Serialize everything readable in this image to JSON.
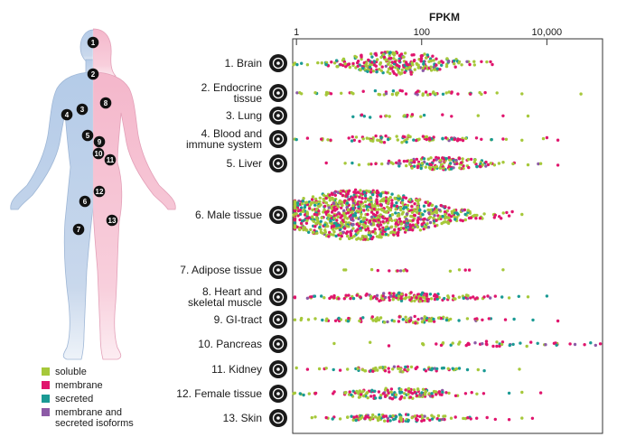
{
  "chart_data": {
    "type": "scatter",
    "subtype": "beeswarm",
    "title": "",
    "xlabel": "FPKM",
    "ylabel": "",
    "x_scale": "log",
    "xlim": [
      0.9,
      75000
    ],
    "x_ticks": [
      {
        "value": 1,
        "label": "1"
      },
      {
        "value": 100,
        "label": "100"
      },
      {
        "value": 10000,
        "label": "10,000"
      }
    ],
    "grid": false,
    "legend_position": "bottom-left",
    "categories_colors": {
      "soluble": "#a6c83a",
      "membrane": "#e0156d",
      "secreted": "#1a9a94",
      "membrane and secreted isoforms": "#8c5aa6"
    },
    "legend": [
      {
        "key": "soluble",
        "label": "soluble"
      },
      {
        "key": "membrane",
        "label": "membrane"
      },
      {
        "key": "secreted",
        "label": "secreted"
      },
      {
        "key": "membrane and secreted isoforms",
        "label": "membrane and secreted isoforms"
      }
    ],
    "tissues": [
      {
        "number": 1,
        "label": [
          "1. Brain"
        ],
        "icon": "brain-icon",
        "density": {
          "median": 40,
          "spread": 1.0,
          "count": 280,
          "height": 26
        },
        "outliers": [
          0.9,
          1.2,
          1.5,
          3,
          6,
          400,
          700,
          900,
          1100
        ]
      },
      {
        "number": 2,
        "label": [
          "2. Endocrine",
          "tissue"
        ],
        "icon": "thyroid-icon",
        "density": {
          "median": 40,
          "spread": 1.1,
          "count": 55,
          "height": 6
        },
        "outliers": [
          1.2,
          2,
          3,
          600,
          900,
          1600,
          4000,
          35000
        ]
      },
      {
        "number": 3,
        "label": [
          "3. Lung"
        ],
        "icon": "lungs-icon",
        "density": {
          "median": 60,
          "spread": 1.2,
          "count": 18,
          "height": 3
        },
        "outliers": [
          8,
          15,
          300,
          800,
          2000,
          5000
        ]
      },
      {
        "number": 4,
        "label": [
          "4. Blood and",
          "immune system"
        ],
        "icon": "blood-cell-icon",
        "density": {
          "median": 40,
          "spread": 1.3,
          "count": 90,
          "height": 8
        },
        "outliers": [
          1,
          1.5,
          2.5,
          2000,
          4000,
          10000,
          15000
        ]
      },
      {
        "number": 5,
        "label": [
          "5. Liver"
        ],
        "icon": "liver-icon",
        "density": {
          "median": 200,
          "spread": 0.9,
          "count": 160,
          "height": 14
        },
        "outliers": [
          3,
          6,
          10,
          5000,
          8000,
          15000
        ]
      },
      {
        "number": 6,
        "label": [
          "6. Male tissue"
        ],
        "icon": "testis-icon",
        "density": {
          "median": 10,
          "spread": 1.5,
          "count": 1100,
          "height": 56
        },
        "outliers": [
          0.9,
          1,
          500,
          1000,
          1500,
          2500,
          4000
        ]
      },
      {
        "number": 7,
        "label": [
          "7. Adipose tissue"
        ],
        "icon": "fat-cells-icon",
        "density": {
          "median": 100,
          "spread": 1.3,
          "count": 12,
          "height": 3
        },
        "outliers": [
          20,
          400,
          500,
          2000
        ]
      },
      {
        "number": 8,
        "label": [
          "8. Heart and",
          "skeletal muscle"
        ],
        "icon": "heart-icon",
        "density": {
          "median": 60,
          "spread": 1.3,
          "count": 160,
          "height": 10
        },
        "outliers": [
          1.5,
          2.5,
          4,
          2500,
          5000,
          10000
        ]
      },
      {
        "number": 9,
        "label": [
          "9. GI-tract"
        ],
        "icon": "stomach-icon",
        "density": {
          "median": 60,
          "spread": 1.3,
          "count": 90,
          "height": 8
        },
        "outliers": [
          1.2,
          2,
          3,
          3000,
          6000,
          15000
        ]
      },
      {
        "number": 10,
        "label": [
          "10. Pancreas"
        ],
        "icon": "pancreas-icon",
        "density": {
          "median": 1500,
          "spread": 1.4,
          "count": 45,
          "height": 6
        },
        "outliers": [
          4,
          15,
          30,
          40000,
          50000,
          60000
        ]
      },
      {
        "number": 11,
        "label": [
          "11. Kidney"
        ],
        "icon": "kidney-icon",
        "density": {
          "median": 40,
          "spread": 1.0,
          "count": 75,
          "height": 6
        },
        "outliers": [
          1,
          1.5,
          3,
          400,
          800,
          1000
        ]
      },
      {
        "number": 12,
        "label": [
          "12. Female tissue"
        ],
        "icon": "uterus-icon",
        "density": {
          "median": 40,
          "spread": 1.1,
          "count": 150,
          "height": 12
        },
        "outliers": [
          0.9,
          1.3,
          2,
          2500,
          4000,
          8000
        ]
      },
      {
        "number": 13,
        "label": [
          "13. Skin"
        ],
        "icon": "skin-icon",
        "density": {
          "median": 40,
          "spread": 1.1,
          "count": 110,
          "height": 8
        },
        "outliers": [
          2,
          3,
          5,
          1500,
          2500,
          4000
        ]
      }
    ]
  },
  "body_markers": [
    {
      "number": "1"
    },
    {
      "number": "2"
    },
    {
      "number": "3"
    },
    {
      "number": "4"
    },
    {
      "number": "5"
    },
    {
      "number": "6"
    },
    {
      "number": "7"
    },
    {
      "number": "8"
    },
    {
      "number": "9"
    },
    {
      "number": "10"
    },
    {
      "number": "11"
    },
    {
      "number": "12"
    },
    {
      "number": "13"
    }
  ],
  "body_colors": {
    "male": "#bcd1ea",
    "female": "#f6c6d6"
  }
}
